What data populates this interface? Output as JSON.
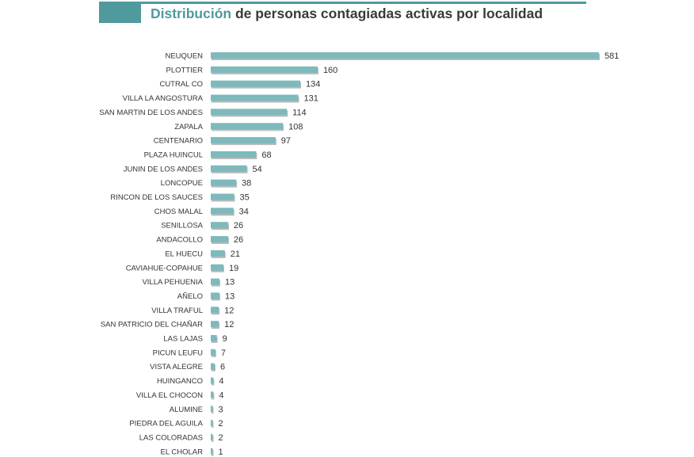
{
  "header": {
    "title_accent": "Distribución",
    "title_rest": " de personas contagiadas activas por localidad"
  },
  "colors": {
    "bar": "#7eb9bc",
    "bar_shadow": "#b8babb",
    "accent": "#4e9a9c"
  },
  "chart_data": {
    "type": "bar",
    "orientation": "horizontal",
    "title": "Distribución de personas contagiadas activas por localidad",
    "xlabel": "",
    "ylabel": "",
    "grid": false,
    "categories": [
      "NEUQUEN",
      "PLOTTIER",
      "CUTRAL CO",
      "VILLA LA ANGOSTURA",
      "SAN MARTIN DE LOS ANDES",
      "ZAPALA",
      "CENTENARIO",
      "PLAZA HUINCUL",
      "JUNIN DE LOS ANDES",
      "LONCOPUE",
      "RINCON DE LOS SAUCES",
      "CHOS MALAL",
      "SENILLOSA",
      "ANDACOLLO",
      "EL HUECU",
      "CAVIAHUE-COPAHUE",
      "VILLA PEHUENIA",
      "AÑELO",
      "VILLA TRAFUL",
      "SAN PATRICIO DEL CHAÑAR",
      "LAS LAJAS",
      "PICUN LEUFU",
      "VISTA ALEGRE",
      "HUINGANCO",
      "VILLA EL CHOCON",
      "ALUMINE",
      "PIEDRA DEL AGUILA",
      "LAS COLORADAS",
      "EL CHOLAR"
    ],
    "values": [
      581,
      160,
      134,
      131,
      114,
      108,
      97,
      68,
      54,
      38,
      35,
      34,
      26,
      26,
      21,
      19,
      13,
      13,
      12,
      12,
      9,
      7,
      6,
      4,
      4,
      3,
      2,
      2,
      1
    ],
    "xlim": [
      0,
      581
    ]
  }
}
